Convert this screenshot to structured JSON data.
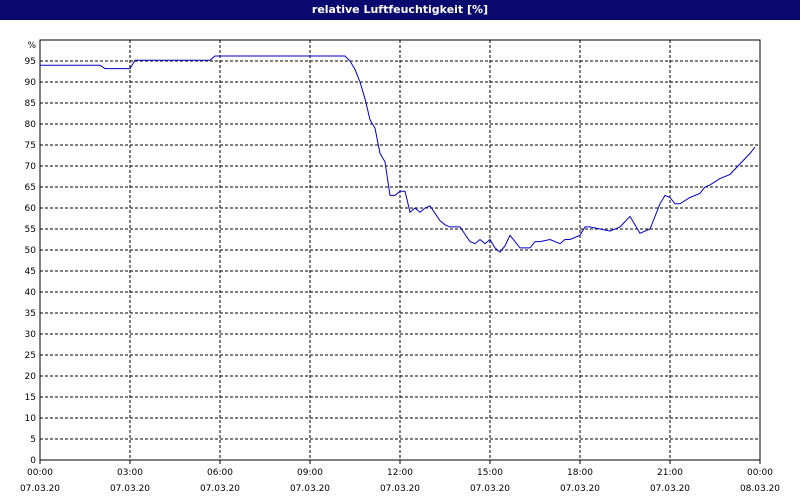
{
  "window": {
    "title": "relative Luftfeuchtigkeit [%]",
    "title_bg": "#0a0a6e"
  },
  "chart_data": {
    "type": "line",
    "title": "relative Luftfeuchtigkeit [%]",
    "xlabel": "",
    "ylabel": "%",
    "ylim": [
      0,
      100
    ],
    "y_ticks": [
      0,
      5,
      10,
      15,
      20,
      25,
      30,
      35,
      40,
      45,
      50,
      55,
      60,
      65,
      70,
      75,
      80,
      85,
      90,
      95
    ],
    "xlim": [
      "07.03.20 00:00",
      "08.03.20 00:00"
    ],
    "x_ticks": [
      {
        "time": "00:00",
        "date": "07.03.20"
      },
      {
        "time": "03:00",
        "date": "07.03.20"
      },
      {
        "time": "06:00",
        "date": "07.03.20"
      },
      {
        "time": "09:00",
        "date": "07.03.20"
      },
      {
        "time": "12:00",
        "date": "07.03.20"
      },
      {
        "time": "15:00",
        "date": "07.03.20"
      },
      {
        "time": "18:00",
        "date": "07.03.20"
      },
      {
        "time": "21:00",
        "date": "07.03.20"
      },
      {
        "time": "00:00",
        "date": "08.03.20"
      }
    ],
    "grid": true,
    "line_color": "#0000c8",
    "series": [
      {
        "x": [
          "00:00",
          "02:00",
          "02:10",
          "03:00",
          "03:10",
          "05:40",
          "05:50",
          "10:10",
          "10:20",
          "10:30",
          "10:40",
          "10:50",
          "11:00",
          "11:10",
          "11:20",
          "11:30",
          "11:40",
          "11:50",
          "12:00",
          "12:10",
          "12:20",
          "12:30",
          "12:40",
          "12:50",
          "13:00",
          "13:20",
          "13:30",
          "13:40",
          "14:00",
          "14:20",
          "14:30",
          "14:40",
          "14:50",
          "15:00",
          "15:10",
          "15:20",
          "15:30",
          "15:40",
          "16:00",
          "16:20",
          "16:30",
          "16:40",
          "17:00",
          "17:20",
          "17:30",
          "17:40",
          "18:00",
          "18:10",
          "18:20",
          "18:40",
          "19:00",
          "19:20",
          "19:40",
          "20:00",
          "20:20",
          "20:40",
          "20:50",
          "21:00",
          "21:10",
          "21:20",
          "21:40",
          "22:00",
          "22:10",
          "22:20",
          "22:40",
          "23:00",
          "23:20",
          "23:40",
          "23:50"
        ],
        "y": [
          94,
          94,
          93.2,
          93.2,
          95.2,
          95.2,
          96.2,
          96.2,
          95,
          93,
          90,
          86,
          81,
          79,
          73,
          71,
          63,
          63,
          64,
          64,
          59,
          60,
          59,
          60,
          60.5,
          57,
          56,
          55.5,
          55.5,
          52,
          51.5,
          52.5,
          51.5,
          52.5,
          50.5,
          49.5,
          51,
          53.5,
          50.5,
          50.5,
          52,
          52,
          52.5,
          51.5,
          52.5,
          52.5,
          53.5,
          55.5,
          55.5,
          55,
          54.5,
          55.5,
          58,
          54,
          55,
          61,
          63,
          62.5,
          61,
          61,
          62.5,
          63.5,
          65,
          65.5,
          67,
          68,
          70.5,
          73,
          74.5
        ]
      }
    ]
  }
}
